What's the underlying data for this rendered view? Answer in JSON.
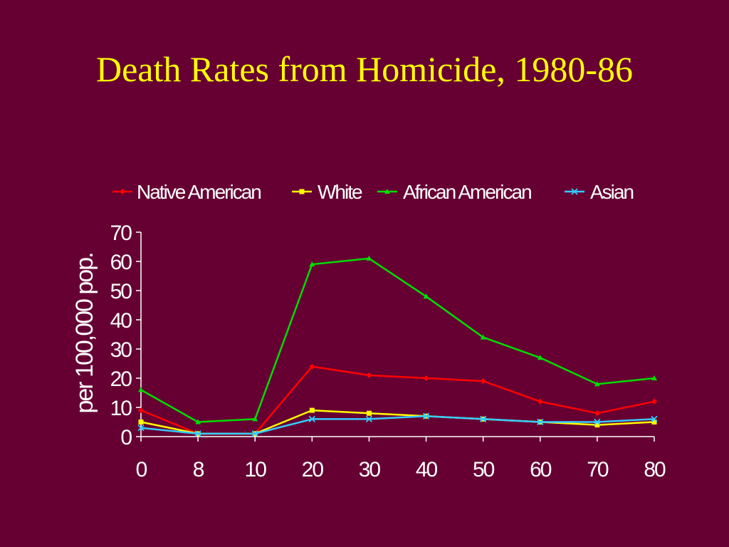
{
  "title": "Death Rates from Homicide, 1980-86",
  "chart_data": {
    "type": "line",
    "title": "Death Rates from Homicide, 1980-86",
    "xlabel": "",
    "ylabel": "per 100,000 pop.",
    "x": [
      "0",
      "8",
      "10",
      "20",
      "30",
      "40",
      "50",
      "60",
      "70",
      "80"
    ],
    "ylim": [
      0,
      70
    ],
    "yticks": [
      0,
      10,
      20,
      30,
      40,
      50,
      60,
      70
    ],
    "grid": false,
    "legend_position": "top",
    "series": [
      {
        "name": "Native American",
        "color": "#FF0000",
        "marker": "diamond",
        "values": [
          9,
          1,
          1,
          24,
          21,
          20,
          19,
          12,
          8,
          12
        ]
      },
      {
        "name": "White",
        "color": "#FFFF00",
        "marker": "square",
        "values": [
          5,
          1,
          1,
          9,
          8,
          7,
          6,
          5,
          4,
          5
        ]
      },
      {
        "name": "African American",
        "color": "#00DD00",
        "marker": "triangle",
        "values": [
          16,
          5,
          6,
          59,
          61,
          48,
          34,
          27,
          18,
          20
        ]
      },
      {
        "name": "Asian",
        "color": "#33CCFF",
        "marker": "x",
        "values": [
          3,
          1,
          1,
          6,
          6,
          7,
          6,
          5,
          5,
          6
        ]
      }
    ]
  }
}
